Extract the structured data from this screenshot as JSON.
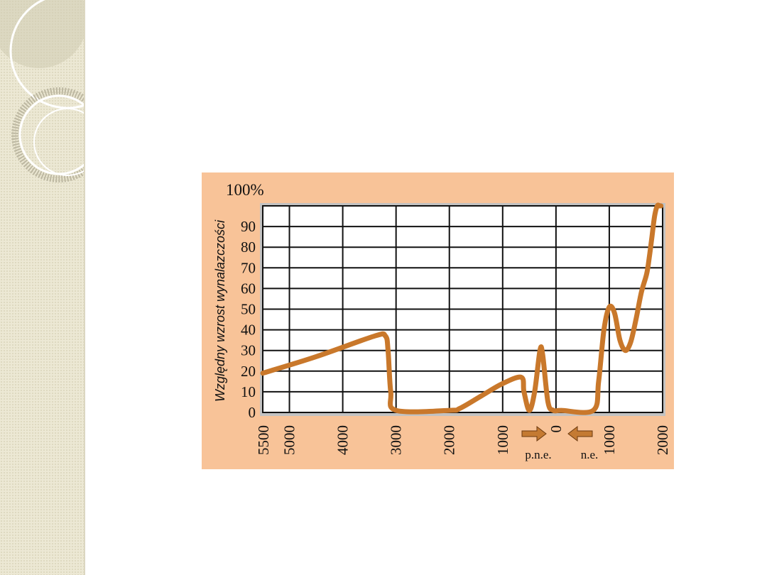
{
  "chart_data": {
    "type": "line",
    "title": "",
    "ylabel": "Względny wzrost wynalazczości",
    "ylabel_top": "100%",
    "xlabel": "",
    "x_axis_note": {
      "before": "p.n.e.",
      "after": "n.e."
    },
    "ylim": [
      0,
      100
    ],
    "yticks": [
      0,
      10,
      20,
      30,
      40,
      50,
      60,
      70,
      80,
      90
    ],
    "xtick_labels": [
      "5500",
      "5000",
      "4000",
      "3000",
      "2000",
      "1000",
      "0",
      "1000",
      "2000"
    ],
    "xticks": [
      -5500,
      -5000,
      -4000,
      -3000,
      -2000,
      -1000,
      0,
      1000,
      2000
    ],
    "grid": true,
    "series": [
      {
        "name": "",
        "color": "#c9782b",
        "x": [
          -5500,
          -4500,
          -3400,
          -3200,
          -3150,
          -3100,
          -3000,
          -2000,
          -1800,
          -1400,
          -1000,
          -650,
          -600,
          -500,
          -400,
          -300,
          -250,
          -150,
          -50,
          100,
          700,
          800,
          900,
          1000,
          1100,
          1200,
          1300,
          1400,
          1500,
          1600,
          1700,
          1750,
          1800,
          1850,
          1900,
          1950,
          1970
        ],
        "y": [
          19,
          27,
          37,
          37,
          30,
          10,
          1,
          1,
          2,
          8,
          14,
          17,
          10,
          1,
          10,
          30,
          28,
          5,
          1,
          1,
          1,
          15,
          40,
          51,
          48,
          35,
          30,
          34,
          45,
          58,
          67,
          75,
          85,
          95,
          100,
          100,
          100
        ]
      }
    ]
  }
}
